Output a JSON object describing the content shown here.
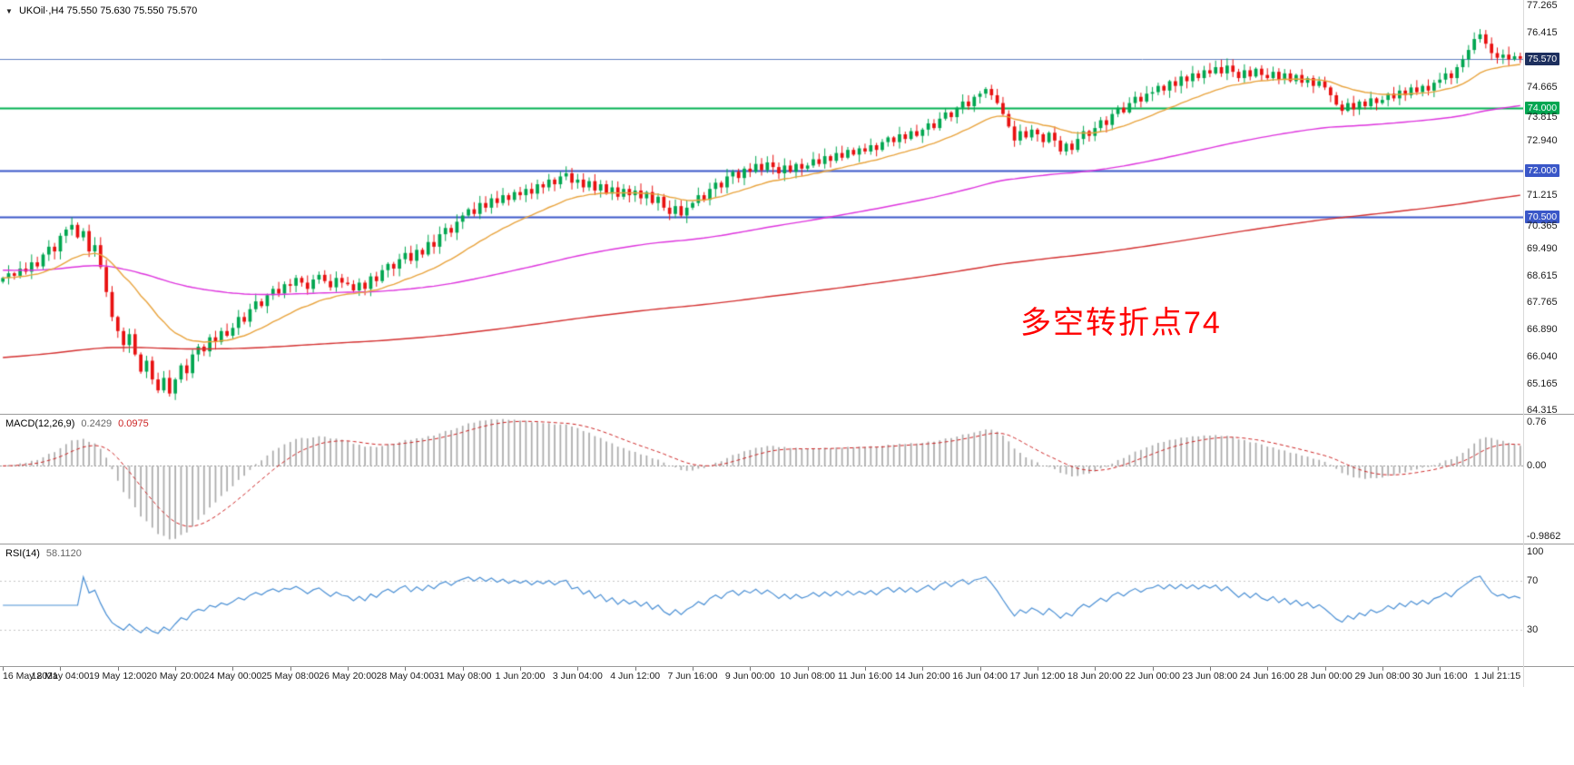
{
  "header": {
    "symbol_line": "UKOil·,H4 75.550 75.630 75.550 75.570",
    "collapse_icon": "▼"
  },
  "indicators": {
    "macd": {
      "title": "MACD(12,26,9)",
      "value_main": "0.2429",
      "value_signal": "0.0975",
      "axis_ticks": [
        {
          "text": "0.76",
          "value": 0.76
        },
        {
          "text": "0.00",
          "value": 0
        },
        {
          "text": "-0.9862",
          "value": -0.9862
        }
      ],
      "histogram_color": "#ababab",
      "signal_color": "#cc2222"
    },
    "rsi": {
      "title": "RSI(14)",
      "value": "58.1120",
      "axis_ticks": [
        {
          "text": "100",
          "value": 100
        },
        {
          "text": "70",
          "value": 70
        },
        {
          "text": "30",
          "value": 30
        }
      ],
      "levels": [
        70,
        30
      ],
      "line_color": "#4a8fd4"
    }
  },
  "chart_data": {
    "type": "candlestick",
    "symbol": "UKOil",
    "timeframe": "H4",
    "ohlc_display": {
      "open": "75.550",
      "high": "75.630",
      "low": "75.550",
      "close": "75.570"
    },
    "annotation": {
      "text": "多空转折点74",
      "color": "#ff0000"
    },
    "colors": {
      "bull": "#00a650",
      "bear": "#e81010",
      "background": "#ffffff"
    },
    "price_axis": {
      "min": 64.2,
      "max": 77.45,
      "ticks": [
        {
          "text": "77.265",
          "price": 77.265
        },
        {
          "text": "76.415",
          "price": 76.415
        },
        {
          "text": "75.570",
          "price": 75.57,
          "box_color": "#1d2f5e"
        },
        {
          "text": "74.665",
          "price": 74.665
        },
        {
          "text": "74.000",
          "price": 74.0,
          "box_color": "#00a651"
        },
        {
          "text": "73.815",
          "price": 73.815
        },
        {
          "text": "72.940",
          "price": 72.94
        },
        {
          "text": "72.000",
          "price": 72.0,
          "box_color": "#3a57c8"
        },
        {
          "text": "71.215",
          "price": 71.215
        },
        {
          "text": "70.500",
          "price": 70.5,
          "box_color": "#3a57c8"
        },
        {
          "text": "70.365",
          "price": 70.365
        },
        {
          "text": "69.490",
          "price": 69.49
        },
        {
          "text": "68.615",
          "price": 68.615
        },
        {
          "text": "67.765",
          "price": 67.765
        },
        {
          "text": "66.890",
          "price": 66.89
        },
        {
          "text": "66.040",
          "price": 66.04
        },
        {
          "text": "65.165",
          "price": 65.165
        },
        {
          "text": "64.315",
          "price": 64.315
        }
      ]
    },
    "levels": [
      {
        "name": "bid-line",
        "price": 75.57,
        "color": "#6080c0",
        "width": 1
      },
      {
        "name": "support-74",
        "price": 74.0,
        "color": "#00b050",
        "width": 2
      },
      {
        "name": "support-72",
        "price": 72.0,
        "color": "#3a57c8",
        "width": 2
      },
      {
        "name": "support-70-5",
        "price": 70.5,
        "color": "#3a57c8",
        "width": 2
      }
    ],
    "overlays": [
      {
        "name": "ma-slow",
        "color": "#d32f2f",
        "period": 360,
        "seed": 66.0
      },
      {
        "name": "ma-medium",
        "color": "#dd33dd",
        "period": 120,
        "seed": 68.8
      },
      {
        "name": "ma-fast",
        "color": "#e8a33d",
        "period": 21
      }
    ],
    "x_labels": [
      "16 May 2021",
      "18 May 04:00",
      "19 May 12:00",
      "20 May 20:00",
      "24 May 00:00",
      "25 May 08:00",
      "26 May 20:00",
      "28 May 04:00",
      "31 May 08:00",
      "1 Jun 20:00",
      "3 Jun 04:00",
      "4 Jun 12:00",
      "7 Jun 16:00",
      "9 Jun 00:00",
      "10 Jun 08:00",
      "11 Jun 16:00",
      "14 Jun 20:00",
      "16 Jun 04:00",
      "17 Jun 12:00",
      "18 Jun 20:00",
      "22 Jun 00:00",
      "23 Jun 08:00",
      "24 Jun 16:00",
      "28 Jun 00:00",
      "29 Jun 08:00",
      "30 Jun 16:00",
      "1 Jul 21:15"
    ],
    "closes": [
      68.55,
      68.7,
      68.62,
      68.85,
      68.75,
      69.05,
      68.92,
      69.3,
      69.55,
      69.4,
      69.9,
      70.1,
      70.25,
      69.85,
      70.05,
      69.4,
      69.6,
      68.9,
      68.1,
      67.3,
      66.85,
      66.4,
      66.75,
      66.1,
      65.55,
      65.9,
      65.3,
      64.95,
      65.35,
      64.85,
      65.3,
      65.75,
      65.5,
      66.1,
      66.35,
      66.2,
      66.65,
      66.5,
      66.85,
      66.7,
      66.95,
      67.3,
      67.15,
      67.55,
      67.8,
      67.65,
      68.0,
      68.2,
      68.05,
      68.35,
      68.3,
      68.55,
      68.4,
      68.2,
      68.5,
      68.65,
      68.45,
      68.25,
      68.55,
      68.4,
      68.35,
      68.15,
      68.4,
      68.2,
      68.6,
      68.45,
      68.8,
      69.0,
      68.85,
      69.15,
      69.35,
      69.1,
      69.45,
      69.3,
      69.7,
      69.55,
      69.95,
      70.15,
      70.0,
      70.35,
      70.55,
      70.75,
      70.6,
      70.95,
      70.8,
      71.1,
      70.95,
      71.2,
      71.05,
      71.3,
      71.2,
      71.4,
      71.25,
      71.55,
      71.45,
      71.7,
      71.55,
      71.8,
      71.9,
      71.6,
      71.7,
      71.45,
      71.65,
      71.35,
      71.55,
      71.25,
      71.45,
      71.15,
      71.4,
      71.2,
      71.35,
      71.1,
      71.3,
      70.95,
      71.15,
      70.8,
      70.6,
      70.85,
      70.55,
      70.8,
      70.95,
      71.2,
      71.05,
      71.4,
      71.6,
      71.45,
      71.8,
      71.95,
      71.75,
      72.05,
      71.95,
      72.2,
      72.0,
      72.25,
      72.1,
      71.9,
      72.15,
      71.95,
      72.2,
      72.05,
      72.15,
      72.35,
      72.2,
      72.45,
      72.3,
      72.55,
      72.4,
      72.65,
      72.5,
      72.7,
      72.6,
      72.8,
      72.65,
      72.9,
      73.05,
      72.9,
      73.15,
      73.0,
      73.25,
      73.1,
      73.3,
      73.5,
      73.35,
      73.65,
      73.85,
      73.7,
      74.0,
      74.2,
      74.05,
      74.35,
      74.45,
      74.6,
      74.4,
      74.15,
      73.8,
      73.4,
      72.95,
      73.25,
      73.05,
      73.3,
      73.15,
      72.9,
      73.2,
      72.95,
      72.6,
      72.85,
      72.65,
      73.0,
      73.25,
      73.1,
      73.35,
      73.6,
      73.45,
      73.8,
      74.0,
      73.85,
      74.15,
      74.35,
      74.2,
      74.45,
      74.5,
      74.7,
      74.55,
      74.85,
      74.7,
      75.0,
      74.85,
      75.1,
      74.95,
      75.2,
      75.1,
      75.3,
      75.1,
      75.35,
      75.15,
      74.95,
      75.2,
      75.0,
      75.25,
      75.05,
      74.95,
      75.15,
      74.9,
      75.1,
      74.85,
      75.05,
      74.8,
      74.95,
      74.7,
      74.85,
      74.65,
      74.4,
      74.1,
      73.9,
      74.15,
      73.95,
      74.2,
      74.05,
      74.3,
      74.15,
      74.25,
      74.45,
      74.3,
      74.55,
      74.4,
      74.65,
      74.5,
      74.7,
      74.55,
      74.8,
      74.9,
      75.1,
      74.95,
      75.3,
      75.55,
      75.85,
      76.2,
      76.35,
      76.05,
      75.75,
      75.6,
      75.7,
      75.55,
      75.65,
      75.57
    ]
  }
}
